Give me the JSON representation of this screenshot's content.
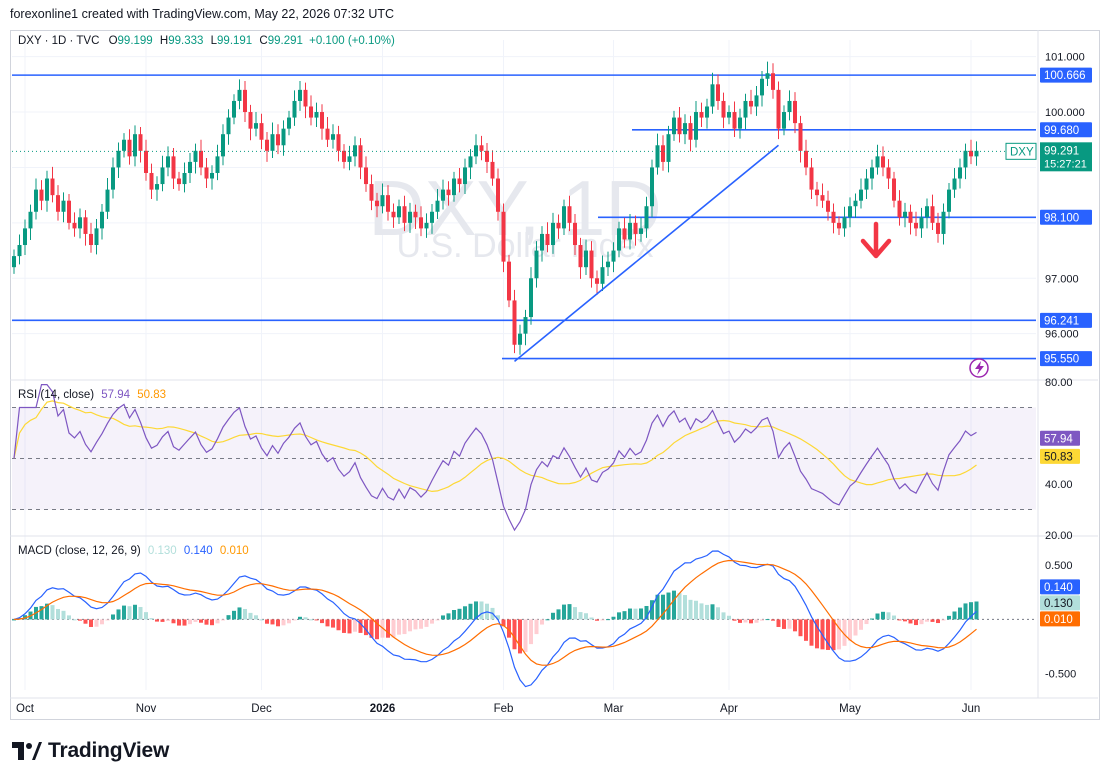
{
  "header": {
    "credit": "forexonline1 created with TradingView.com, May 22, 2026 07:32 UTC"
  },
  "legend": {
    "symbol": "DXY · 1D · TVC",
    "open_label": "O",
    "open": "99.199",
    "high_label": "H",
    "high": "99.333",
    "low_label": "L",
    "low": "99.191",
    "close_label": "C",
    "close": "99.291",
    "change": "+0.100 (+0.10%)"
  },
  "rsi_legend": {
    "title": "RSI (14, close)",
    "rsi": "57.94",
    "ma": "50.83"
  },
  "macd_legend": {
    "title": "MACD (close, 12, 26, 9)",
    "hist": "0.130",
    "macd": "0.140",
    "signal": "0.010"
  },
  "watermark": {
    "ticker": "DXY, 1D",
    "name": "U.S. Dollar Index"
  },
  "footer": {
    "brand": "TradingView"
  },
  "colors": {
    "up": "#089981",
    "down": "#f23645",
    "line": "#2962ff",
    "rsi": "#7e57c2",
    "rsi_ma": "#fdd835",
    "signal": "#ff6d00",
    "arrow": "#f23645"
  },
  "chart_data": [
    {
      "type": "candlestick",
      "symbol": "DXY",
      "interval": "1D",
      "x": [
        "Oct",
        "Nov",
        "Dec",
        "2026",
        "Feb",
        "Mar",
        "Apr",
        "May",
        "Jun"
      ],
      "y_ticks": [
        "101.000",
        "100.000",
        "97.000",
        "96.000"
      ],
      "ylim": [
        95.2,
        101.3
      ],
      "horizontal_levels": [
        "100.666",
        "99.680",
        "98.100",
        "96.241",
        "95.550"
      ],
      "last_price": {
        "symbol": "DXY",
        "value": "99.291",
        "countdown": "15:27:21"
      },
      "trendline": {
        "from": [
          "2026-01-27",
          95.5
        ],
        "to": [
          "2026-03-30",
          99.4
        ]
      },
      "annotation": "down-arrow",
      "closes": [
        97.4,
        97.6,
        97.9,
        98.2,
        98.6,
        98.4,
        98.8,
        98.5,
        98.2,
        98.4,
        98.0,
        97.9,
        98.1,
        97.8,
        97.6,
        97.9,
        98.2,
        98.6,
        99.0,
        99.3,
        99.5,
        99.2,
        99.6,
        99.3,
        98.9,
        98.6,
        98.7,
        99.0,
        99.2,
        98.8,
        98.7,
        98.9,
        99.1,
        99.3,
        99.0,
        98.8,
        98.9,
        99.2,
        99.6,
        99.9,
        100.2,
        100.4,
        100.0,
        99.7,
        99.8,
        99.5,
        99.3,
        99.6,
        99.4,
        99.7,
        99.9,
        100.2,
        100.4,
        100.1,
        99.9,
        100.0,
        99.7,
        99.5,
        99.6,
        99.3,
        99.1,
        99.2,
        99.4,
        99.0,
        98.7,
        98.4,
        98.3,
        98.5,
        98.2,
        98.1,
        98.3,
        98.0,
        98.2,
        98.1,
        97.9,
        98.0,
        98.2,
        98.4,
        98.6,
        98.5,
        98.8,
        98.7,
        99.0,
        99.2,
        99.4,
        99.3,
        99.1,
        98.8,
        98.2,
        97.3,
        96.6,
        95.8,
        96.0,
        96.3,
        97.0,
        97.5,
        97.8,
        97.6,
        98.0,
        97.9,
        98.3,
        98.0,
        97.6,
        97.2,
        97.5,
        97.0,
        96.9,
        97.2,
        97.3,
        97.5,
        97.9,
        97.7,
        98.0,
        97.8,
        97.9,
        98.3,
        99.0,
        99.4,
        99.1,
        99.6,
        99.9,
        99.6,
        99.8,
        99.5,
        100.0,
        99.9,
        100.1,
        100.5,
        100.2,
        99.9,
        100.0,
        99.7,
        99.9,
        100.2,
        100.1,
        100.3,
        100.6,
        100.7,
        100.4,
        99.7,
        100.0,
        100.2,
        99.8,
        99.3,
        99.0,
        98.6,
        98.5,
        98.4,
        98.2,
        98.0,
        97.9,
        98.1,
        98.3,
        98.4,
        98.6,
        98.8,
        99.0,
        99.2,
        99.0,
        98.8,
        98.4,
        98.1,
        98.2,
        98.0,
        97.9,
        98.1,
        98.3,
        98.0,
        97.8,
        98.2,
        98.6,
        98.8,
        99.0,
        99.3,
        99.2,
        99.3
      ],
      "rsi": {
        "ylim": [
          20,
          80
        ],
        "ticks": [
          "80.00",
          "40.00",
          "20.00"
        ],
        "last": "57.94",
        "ma_last": "50.83",
        "bands": [
          70,
          50,
          30
        ]
      },
      "macd": {
        "ylim": [
          -0.65,
          0.75
        ],
        "ticks": [
          "0.500",
          "-0.500"
        ],
        "last": {
          "macd": "0.140",
          "hist": "0.130",
          "signal": "0.010"
        }
      }
    }
  ]
}
